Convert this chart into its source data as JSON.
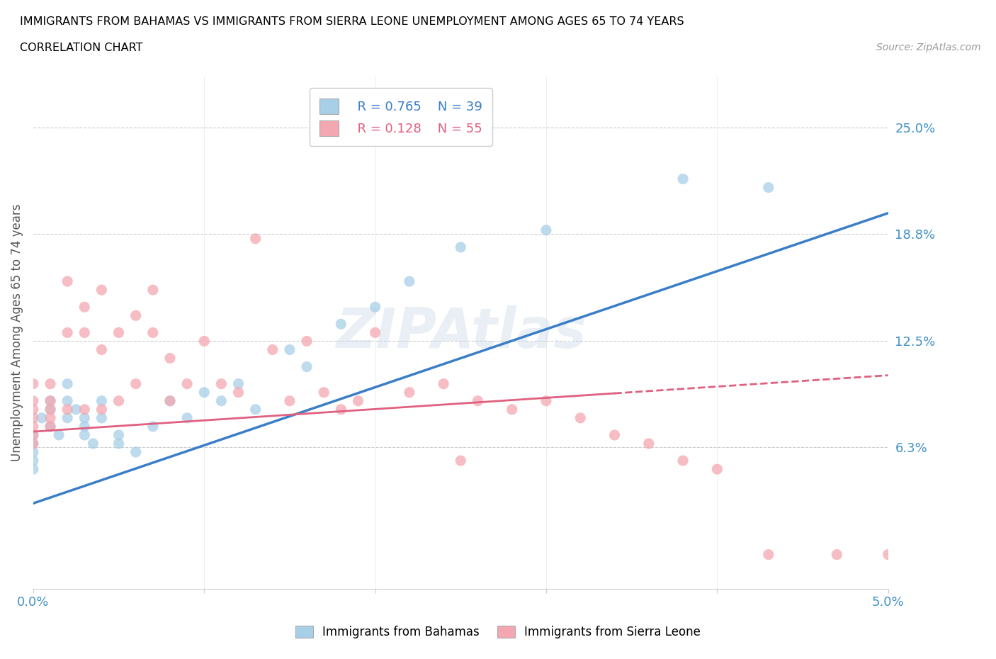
{
  "title_line1": "IMMIGRANTS FROM BAHAMAS VS IMMIGRANTS FROM SIERRA LEONE UNEMPLOYMENT AMONG AGES 65 TO 74 YEARS",
  "title_line2": "CORRELATION CHART",
  "source_text": "Source: ZipAtlas.com",
  "ylabel": "Unemployment Among Ages 65 to 74 years",
  "xlim": [
    0.0,
    0.05
  ],
  "ylim": [
    -0.02,
    0.28
  ],
  "ytick_positions": [
    0.063,
    0.125,
    0.188,
    0.25
  ],
  "ytick_labels": [
    "6.3%",
    "12.5%",
    "18.8%",
    "25.0%"
  ],
  "xtick_positions": [
    0.0,
    0.01,
    0.02,
    0.03,
    0.04,
    0.05
  ],
  "xtick_labels": [
    "0.0%",
    "",
    "",
    "",
    "",
    "5.0%"
  ],
  "legend1_r": "0.765",
  "legend1_n": "39",
  "legend2_r": "0.128",
  "legend2_n": "55",
  "color_bahamas": "#a8cfe8",
  "color_sierra": "#f4a7b0",
  "color_bahamas_line": "#3a7ec8",
  "color_sierra_line": "#e06080",
  "bahamas_x": [
    0.0,
    0.0,
    0.0,
    0.0,
    0.0,
    0.0005,
    0.001,
    0.001,
    0.001,
    0.0015,
    0.002,
    0.002,
    0.002,
    0.0025,
    0.003,
    0.003,
    0.003,
    0.0035,
    0.004,
    0.004,
    0.005,
    0.005,
    0.006,
    0.007,
    0.008,
    0.009,
    0.01,
    0.011,
    0.012,
    0.013,
    0.015,
    0.016,
    0.018,
    0.02,
    0.022,
    0.025,
    0.03,
    0.038,
    0.043
  ],
  "bahamas_y": [
    0.055,
    0.07,
    0.065,
    0.06,
    0.05,
    0.08,
    0.075,
    0.09,
    0.085,
    0.07,
    0.08,
    0.1,
    0.09,
    0.085,
    0.08,
    0.075,
    0.07,
    0.065,
    0.08,
    0.09,
    0.07,
    0.065,
    0.06,
    0.075,
    0.09,
    0.08,
    0.095,
    0.09,
    0.1,
    0.085,
    0.12,
    0.11,
    0.135,
    0.145,
    0.16,
    0.18,
    0.19,
    0.22,
    0.215
  ],
  "sierra_x": [
    0.0,
    0.0,
    0.0,
    0.0,
    0.0,
    0.0,
    0.0,
    0.001,
    0.001,
    0.001,
    0.001,
    0.001,
    0.002,
    0.002,
    0.002,
    0.003,
    0.003,
    0.003,
    0.004,
    0.004,
    0.004,
    0.005,
    0.005,
    0.006,
    0.006,
    0.007,
    0.007,
    0.008,
    0.008,
    0.009,
    0.01,
    0.011,
    0.012,
    0.013,
    0.014,
    0.015,
    0.016,
    0.017,
    0.018,
    0.019,
    0.02,
    0.022,
    0.024,
    0.025,
    0.026,
    0.028,
    0.03,
    0.032,
    0.034,
    0.036,
    0.038,
    0.04,
    0.043,
    0.047,
    0.05
  ],
  "sierra_y": [
    0.1,
    0.09,
    0.085,
    0.08,
    0.075,
    0.07,
    0.065,
    0.1,
    0.09,
    0.085,
    0.08,
    0.075,
    0.16,
    0.13,
    0.085,
    0.145,
    0.13,
    0.085,
    0.155,
    0.12,
    0.085,
    0.13,
    0.09,
    0.14,
    0.1,
    0.155,
    0.13,
    0.115,
    0.09,
    0.1,
    0.125,
    0.1,
    0.095,
    0.185,
    0.12,
    0.09,
    0.125,
    0.095,
    0.085,
    0.09,
    0.13,
    0.095,
    0.1,
    0.055,
    0.09,
    0.085,
    0.09,
    0.08,
    0.07,
    0.065,
    0.055,
    0.05,
    0.0,
    0.0,
    0.0
  ]
}
